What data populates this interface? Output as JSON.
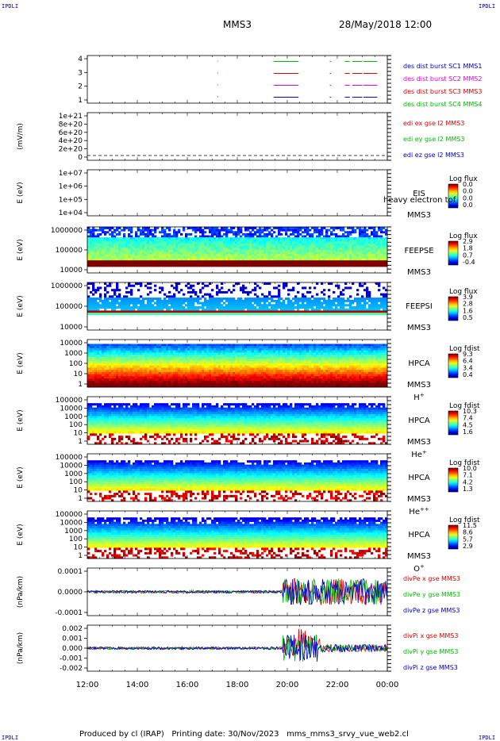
{
  "header": {
    "left_badge": "IPDLI",
    "right_badge": "IPDLI",
    "spacecraft": "MMS3",
    "datetime": "28/May/2018 12:00"
  },
  "footer": {
    "bottom_left_badge": "IPDLI",
    "bottom_right_badge": "IPDLI",
    "produced_by": "Produced by cl (IRAP)",
    "printing_date": "Printing date: 30/Nov/2023",
    "script_name": "mms_mms3_srvy_vue_web2.cl"
  },
  "chart_data": {
    "type": "multi-panel time series / spectrogram",
    "x_axis": {
      "ticks": [
        "12:00",
        "14:00",
        "16:00",
        "18:00",
        "20:00",
        "22:00",
        "00:00"
      ],
      "range_hours": [
        12,
        24
      ]
    },
    "panels": [
      {
        "id": "burst",
        "type": "line",
        "ylabel": "",
        "yticks": [
          "4",
          "3",
          "2",
          "1"
        ],
        "ylim": [
          0.5,
          4.5
        ],
        "series": [
          {
            "name": "des dist burst SC1 MMS1",
            "color": "#0000cc",
            "y": 1,
            "segments_hours": [
              [
                19.45,
                20.45
              ],
              [
                21.7,
                21.75
              ],
              [
                22.3,
                22.5
              ],
              [
                22.6,
                23.0
              ],
              [
                23.05,
                23.6
              ]
            ]
          },
          {
            "name": "des dist burst SC2 MMS2",
            "color": "#dd00dd",
            "y": 2,
            "segments_hours": [
              [
                19.45,
                20.45
              ],
              [
                21.7,
                21.75
              ],
              [
                22.3,
                22.5
              ],
              [
                22.6,
                23.0
              ],
              [
                23.05,
                23.6
              ]
            ]
          },
          {
            "name": "des dist burst SC3 MMS3",
            "color": "#dd0000",
            "y": 3,
            "segments_hours": [
              [
                19.45,
                20.45
              ],
              [
                21.7,
                21.75
              ],
              [
                22.3,
                22.5
              ],
              [
                22.6,
                23.0
              ],
              [
                23.05,
                23.6
              ]
            ]
          },
          {
            "name": "des dist burst SC4 MMS4",
            "color": "#00bb00",
            "y": 4,
            "segments_hours": [
              [
                19.45,
                20.45
              ],
              [
                21.7,
                21.75
              ],
              [
                22.3,
                22.5
              ],
              [
                22.6,
                23.0
              ],
              [
                23.05,
                23.6
              ]
            ]
          }
        ]
      },
      {
        "id": "edi",
        "type": "line",
        "ylabel": "(mV/m)",
        "yticks": [
          "1e+21",
          "8e+20",
          "6e+20",
          "4e+20",
          "2e+20",
          "0"
        ],
        "ylim": [
          0,
          1e+21
        ],
        "series": [
          {
            "name": "edi ex gse l2 MMS3",
            "color": "#dd0000"
          },
          {
            "name": "edi ey gse l2 MMS3",
            "color": "#00bb00"
          },
          {
            "name": "edi ez gse l2 MMS3",
            "color": "#0000cc"
          }
        ]
      },
      {
        "id": "eis",
        "type": "heatmap",
        "ylabel": "E (eV)",
        "yticks": [
          "1e+07",
          "1e+06",
          "1e+05",
          "1e+04"
        ],
        "scale": "log",
        "label_lines": [
          "EIS",
          "MMS3"
        ],
        "overlay_text": "heavy electron tof",
        "colorbar": {
          "title": "Log flux",
          "ticks": [
            "0.0",
            "0.0",
            "0.0",
            "0.0"
          ]
        }
      },
      {
        "id": "feeps_e",
        "type": "heatmap",
        "ylabel": "E (eV)",
        "yticks": [
          "1000000",
          "100000",
          "10000"
        ],
        "scale": "log",
        "label_lines": [
          "FEEPSE",
          "MMS3"
        ],
        "colorbar": {
          "title": "Log flux",
          "ticks": [
            "2.9",
            "1.8",
            "0.7",
            "-0.4"
          ]
        }
      },
      {
        "id": "feeps_i",
        "type": "heatmap",
        "ylabel": "E (eV)",
        "yticks": [
          "1000000",
          "100000",
          "10000"
        ],
        "scale": "log",
        "label_lines": [
          "FEEPSI",
          "MMS3"
        ],
        "colorbar": {
          "title": "Log flux",
          "ticks": [
            "3.9",
            "2.8",
            "1.6",
            "0.5"
          ]
        }
      },
      {
        "id": "hpca_h",
        "type": "heatmap",
        "ylabel": "E (eV)",
        "yticks": [
          "10000",
          "1000",
          "100",
          "10",
          "1"
        ],
        "scale": "log",
        "label_lines": [
          "HPCA",
          "MMS3"
        ],
        "species": "H",
        "charge": "+",
        "colorbar": {
          "title": "Log fdist",
          "ticks": [
            "9.3",
            "6.4",
            "3.4",
            "0.4"
          ]
        }
      },
      {
        "id": "hpca_he",
        "type": "heatmap",
        "ylabel": "E (eV)",
        "yticks": [
          "100000",
          "10000",
          "1000",
          "100",
          "10",
          "1"
        ],
        "scale": "log",
        "label_lines": [
          "HPCA",
          "MMS3"
        ],
        "species": "He",
        "charge": "+",
        "colorbar": {
          "title": "Log fdist",
          "ticks": [
            "10.3",
            "7.4",
            "4.5",
            "1.6"
          ]
        }
      },
      {
        "id": "hpca_he2",
        "type": "heatmap",
        "ylabel": "E (eV)",
        "yticks": [
          "100000",
          "10000",
          "1000",
          "100",
          "10",
          "1"
        ],
        "scale": "log",
        "label_lines": [
          "HPCA",
          "MMS3"
        ],
        "species": "He",
        "charge": "++",
        "colorbar": {
          "title": "Log fdist",
          "ticks": [
            "10.0",
            "7.1",
            "4.2",
            "1.3"
          ]
        }
      },
      {
        "id": "hpca_o",
        "type": "heatmap",
        "ylabel": "E (eV)",
        "yticks": [
          "100000",
          "10000",
          "1000",
          "100",
          "10",
          "1"
        ],
        "scale": "log",
        "label_lines": [
          "HPCA",
          "MMS3"
        ],
        "species": "O",
        "charge": "+",
        "colorbar": {
          "title": "Log fdist",
          "ticks": [
            "11.5",
            "8.6",
            "5.7",
            "2.9"
          ]
        }
      },
      {
        "id": "divpe",
        "type": "line",
        "ylabel": "(nPa/km)",
        "yticks": [
          "0.0001",
          "0.0000",
          "-0.0001"
        ],
        "ylim": [
          -0.00015,
          0.00015
        ],
        "series": [
          {
            "name": "divPe x gse MMS3",
            "color": "#dd0000"
          },
          {
            "name": "divPe y gse MMS3",
            "color": "#00bb00"
          },
          {
            "name": "divPe z gse MMS3",
            "color": "#0000cc"
          }
        ]
      },
      {
        "id": "divpi",
        "type": "line",
        "ylabel": "(nPa/km)",
        "yticks": [
          "0.002",
          "0.001",
          "0.000",
          "-0.001",
          "-0.002"
        ],
        "ylim": [
          -0.0025,
          0.0025
        ],
        "series": [
          {
            "name": "divPi x gse MMS3",
            "color": "#dd0000"
          },
          {
            "name": "divPi y gse MMS3",
            "color": "#00bb00"
          },
          {
            "name": "divPi z gse MMS3",
            "color": "#0000cc"
          }
        ]
      }
    ]
  }
}
